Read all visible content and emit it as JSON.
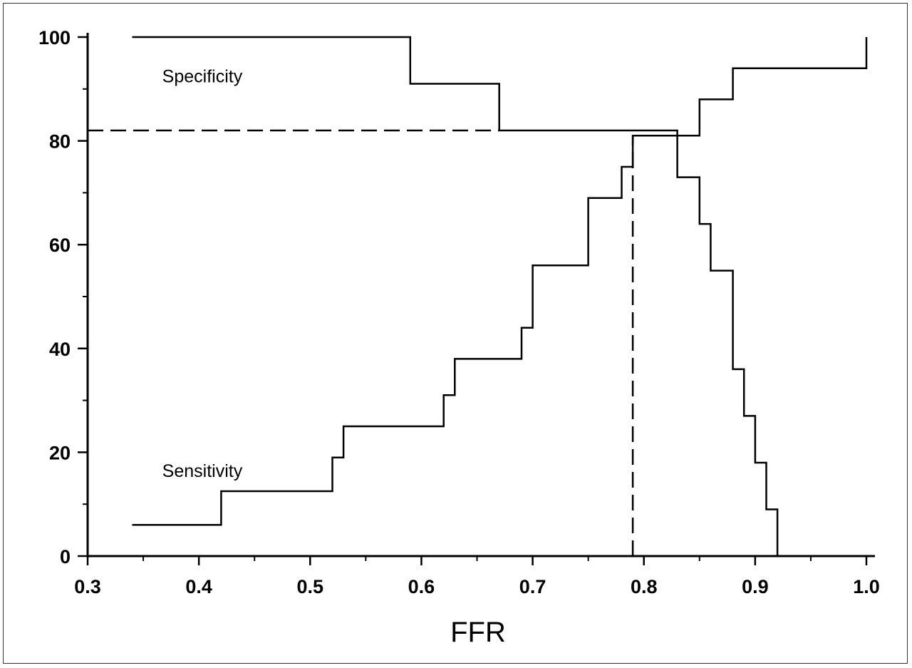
{
  "chart_data": {
    "type": "line",
    "xlabel": "FFR",
    "ylabel": "",
    "xlim": [
      0.3,
      1.0
    ],
    "ylim": [
      0,
      100
    ],
    "x_ticks": [
      "0.3",
      "0.4",
      "0.5",
      "0.6",
      "0.7",
      "0.8",
      "0.9",
      "1.0"
    ],
    "y_ticks": [
      "0",
      "20",
      "40",
      "60",
      "80",
      "100"
    ],
    "x_minor_step": 0.05,
    "y_minor_step": 10,
    "grid": false,
    "series": [
      {
        "name": "Specificity",
        "style": "step",
        "points": [
          [
            0.34,
            100
          ],
          [
            0.59,
            100
          ],
          [
            0.59,
            91
          ],
          [
            0.67,
            91
          ],
          [
            0.67,
            82
          ],
          [
            0.83,
            82
          ],
          [
            0.83,
            73
          ],
          [
            0.85,
            73
          ],
          [
            0.85,
            64
          ],
          [
            0.86,
            64
          ],
          [
            0.86,
            55
          ],
          [
            0.88,
            55
          ],
          [
            0.88,
            36
          ],
          [
            0.89,
            36
          ],
          [
            0.89,
            27
          ],
          [
            0.9,
            27
          ],
          [
            0.9,
            18
          ],
          [
            0.91,
            18
          ],
          [
            0.91,
            9
          ],
          [
            0.92,
            9
          ],
          [
            0.92,
            0
          ]
        ]
      },
      {
        "name": "Sensitivity",
        "style": "step",
        "points": [
          [
            0.34,
            6
          ],
          [
            0.42,
            6
          ],
          [
            0.42,
            12.5
          ],
          [
            0.52,
            12.5
          ],
          [
            0.52,
            19
          ],
          [
            0.53,
            19
          ],
          [
            0.53,
            25
          ],
          [
            0.62,
            25
          ],
          [
            0.62,
            31
          ],
          [
            0.63,
            31
          ],
          [
            0.63,
            38
          ],
          [
            0.69,
            38
          ],
          [
            0.69,
            44
          ],
          [
            0.7,
            44
          ],
          [
            0.7,
            56
          ],
          [
            0.75,
            56
          ],
          [
            0.75,
            69
          ],
          [
            0.78,
            69
          ],
          [
            0.78,
            75
          ],
          [
            0.79,
            75
          ],
          [
            0.79,
            81
          ],
          [
            0.85,
            81
          ],
          [
            0.85,
            88
          ],
          [
            0.88,
            88
          ],
          [
            0.88,
            94
          ],
          [
            1.0,
            94
          ],
          [
            1.0,
            100
          ]
        ]
      }
    ],
    "reference_lines": [
      {
        "style": "dashed",
        "points": [
          [
            0.3,
            82
          ],
          [
            0.67,
            82
          ]
        ]
      },
      {
        "style": "dashed",
        "points": [
          [
            0.79,
            0
          ],
          [
            0.79,
            81
          ]
        ]
      }
    ],
    "annotations": [
      {
        "text": "Specificity",
        "x": 0.36,
        "y": 92.5
      },
      {
        "text": "Sensitivity",
        "x": 0.36,
        "y": 16.5
      }
    ],
    "colors": {
      "line": "#000000",
      "background": "#ffffff"
    }
  }
}
